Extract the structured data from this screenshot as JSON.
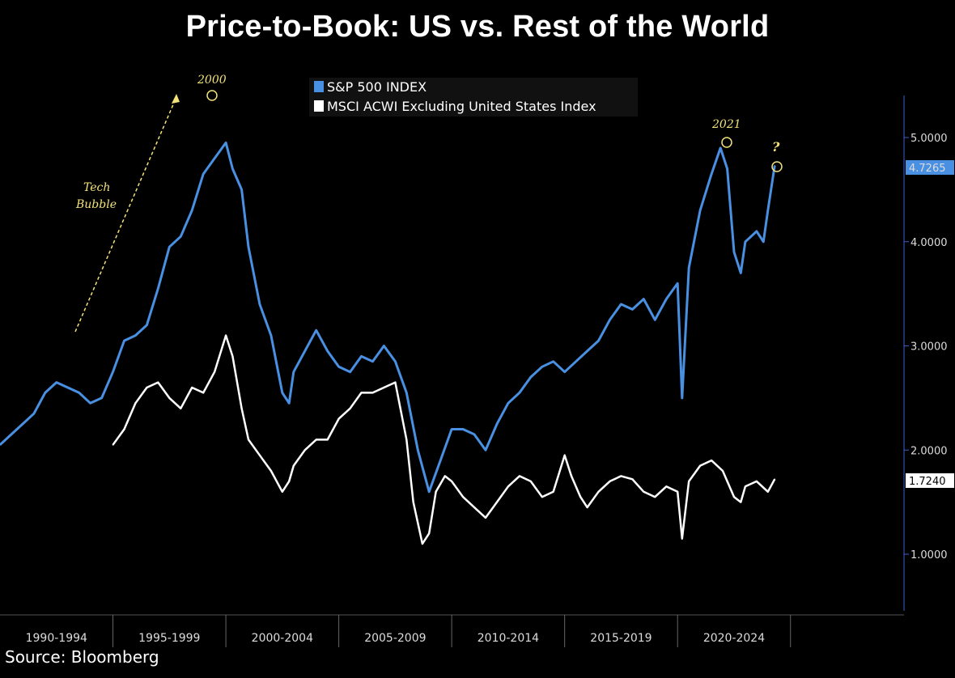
{
  "title": "Price-to-Book: US vs. Rest of the World",
  "source": "Source: Bloomberg",
  "colors": {
    "us": "#4a90e2",
    "world": "#ffffff",
    "annotation": "#f3e27a",
    "axis": "#3a5fd0"
  },
  "legend": [
    {
      "label": "S&P 500 INDEX",
      "color": "#4a90e2"
    },
    {
      "label": "MSCI ACWI Excluding United States Index",
      "color": "#ffffff"
    }
  ],
  "annotations": {
    "peak_2000": "2000",
    "peak_2021": "2021",
    "question": "?",
    "tech_line1": "Tech",
    "tech_line2": "Bubble"
  },
  "last_values": {
    "us": "4.7265",
    "world": "1.7240"
  },
  "chart_data": {
    "type": "line",
    "categories": [
      "1990-1994",
      "1995-1999",
      "2000-2004",
      "2005-2009",
      "2010-2014",
      "2015-2019",
      "2020-2024"
    ],
    "ylim": [
      0.5,
      5.5
    ],
    "y_ticks": [
      "1.0000",
      "2.0000",
      "3.0000",
      "4.0000",
      "5.0000"
    ],
    "grid": false,
    "legend_position": "top-center",
    "series": [
      {
        "name": "S&P 500 INDEX",
        "x": [
          1990.0,
          1990.5,
          1991.0,
          1991.5,
          1992.0,
          1992.5,
          1993.0,
          1993.5,
          1994.0,
          1994.5,
          1995.0,
          1995.5,
          1996.0,
          1996.5,
          1997.0,
          1997.5,
          1998.0,
          1998.5,
          1999.0,
          1999.5,
          2000.0,
          2000.3,
          2000.7,
          2001.0,
          2001.5,
          2002.0,
          2002.5,
          2002.8,
          2003.0,
          2003.5,
          2004.0,
          2004.5,
          2005.0,
          2005.5,
          2006.0,
          2006.5,
          2007.0,
          2007.5,
          2008.0,
          2008.5,
          2009.0,
          2009.5,
          2010.0,
          2010.5,
          2011.0,
          2011.5,
          2012.0,
          2012.5,
          2013.0,
          2013.5,
          2014.0,
          2014.5,
          2015.0,
          2015.5,
          2016.0,
          2016.5,
          2017.0,
          2017.5,
          2018.0,
          2018.5,
          2019.0,
          2019.5,
          2020.0,
          2020.2,
          2020.5,
          2021.0,
          2021.5,
          2021.9,
          2022.2,
          2022.5,
          2022.8,
          2023.0,
          2023.5,
          2023.8,
          2024.0,
          2024.3
        ],
        "values": [
          2.05,
          2.15,
          2.25,
          2.35,
          2.55,
          2.65,
          2.6,
          2.55,
          2.45,
          2.5,
          2.75,
          3.05,
          3.1,
          3.2,
          3.55,
          3.95,
          4.05,
          4.3,
          4.65,
          4.8,
          4.95,
          4.7,
          4.5,
          3.95,
          3.4,
          3.1,
          2.55,
          2.45,
          2.75,
          2.95,
          3.15,
          2.95,
          2.8,
          2.75,
          2.9,
          2.85,
          3.0,
          2.85,
          2.55,
          2.0,
          1.6,
          1.9,
          2.2,
          2.2,
          2.15,
          2.0,
          2.25,
          2.45,
          2.55,
          2.7,
          2.8,
          2.85,
          2.75,
          2.85,
          2.95,
          3.05,
          3.25,
          3.4,
          3.35,
          3.45,
          3.25,
          3.45,
          3.6,
          2.5,
          3.75,
          4.3,
          4.65,
          4.9,
          4.7,
          3.9,
          3.7,
          4.0,
          4.1,
          4.0,
          4.3,
          4.73
        ]
      },
      {
        "name": "MSCI ACWI Excluding United States Index",
        "x": [
          1995.0,
          1995.5,
          1996.0,
          1996.5,
          1997.0,
          1997.5,
          1998.0,
          1998.5,
          1999.0,
          1999.5,
          2000.0,
          2000.3,
          2000.7,
          2001.0,
          2001.5,
          2002.0,
          2002.5,
          2002.8,
          2003.0,
          2003.5,
          2004.0,
          2004.5,
          2005.0,
          2005.5,
          2006.0,
          2006.5,
          2007.0,
          2007.5,
          2008.0,
          2008.3,
          2008.7,
          2009.0,
          2009.3,
          2009.7,
          2010.0,
          2010.5,
          2011.0,
          2011.5,
          2012.0,
          2012.5,
          2013.0,
          2013.5,
          2014.0,
          2014.5,
          2015.0,
          2015.3,
          2015.7,
          2016.0,
          2016.5,
          2017.0,
          2017.5,
          2018.0,
          2018.5,
          2019.0,
          2019.5,
          2020.0,
          2020.2,
          2020.5,
          2021.0,
          2021.5,
          2022.0,
          2022.5,
          2022.8,
          2023.0,
          2023.5,
          2024.0,
          2024.3
        ],
        "values": [
          2.05,
          2.2,
          2.45,
          2.6,
          2.65,
          2.5,
          2.4,
          2.6,
          2.55,
          2.75,
          3.1,
          2.9,
          2.4,
          2.1,
          1.95,
          1.8,
          1.6,
          1.7,
          1.85,
          2.0,
          2.1,
          2.1,
          2.3,
          2.4,
          2.55,
          2.55,
          2.6,
          2.65,
          2.1,
          1.5,
          1.1,
          1.2,
          1.6,
          1.75,
          1.7,
          1.55,
          1.45,
          1.35,
          1.5,
          1.65,
          1.75,
          1.7,
          1.55,
          1.6,
          1.95,
          1.75,
          1.55,
          1.45,
          1.6,
          1.7,
          1.75,
          1.72,
          1.6,
          1.55,
          1.65,
          1.6,
          1.15,
          1.7,
          1.85,
          1.9,
          1.8,
          1.55,
          1.5,
          1.65,
          1.7,
          1.6,
          1.72
        ]
      }
    ]
  }
}
